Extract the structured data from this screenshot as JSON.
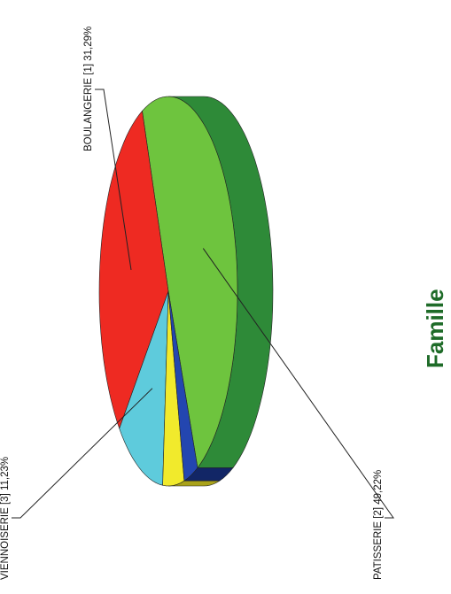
{
  "chart_data": {
    "type": "pie",
    "title": "Famille",
    "slices": [
      {
        "name": "PATISSERIE [2]",
        "percent_label": "49,22%",
        "value": 49.22,
        "color": "#6ec43e",
        "side_color": "#2e8a38",
        "label": "PATISSERIE [2]  49,22%"
      },
      {
        "name": "BOULANGERIE [1]",
        "percent_label": "31,29%",
        "value": 31.29,
        "color": "#ee2a22",
        "side_color": "#7a1412",
        "label": "BOULANGERIE [1]  31,29%"
      },
      {
        "name": "VIENNOISERIE [3]",
        "percent_label": "11,23%",
        "value": 11.23,
        "color": "#5ecbdc",
        "side_color": "#3a98a6",
        "label": "VIENNOISERIE [3]  11,23%"
      },
      {
        "name": "",
        "value": 5.0,
        "color": "#f1ea2c",
        "side_color": "#a9a21a"
      },
      {
        "name": "",
        "value": 3.26,
        "color": "#2346b0",
        "side_color": "#122666"
      }
    ],
    "title_color": "#1e6b28"
  }
}
